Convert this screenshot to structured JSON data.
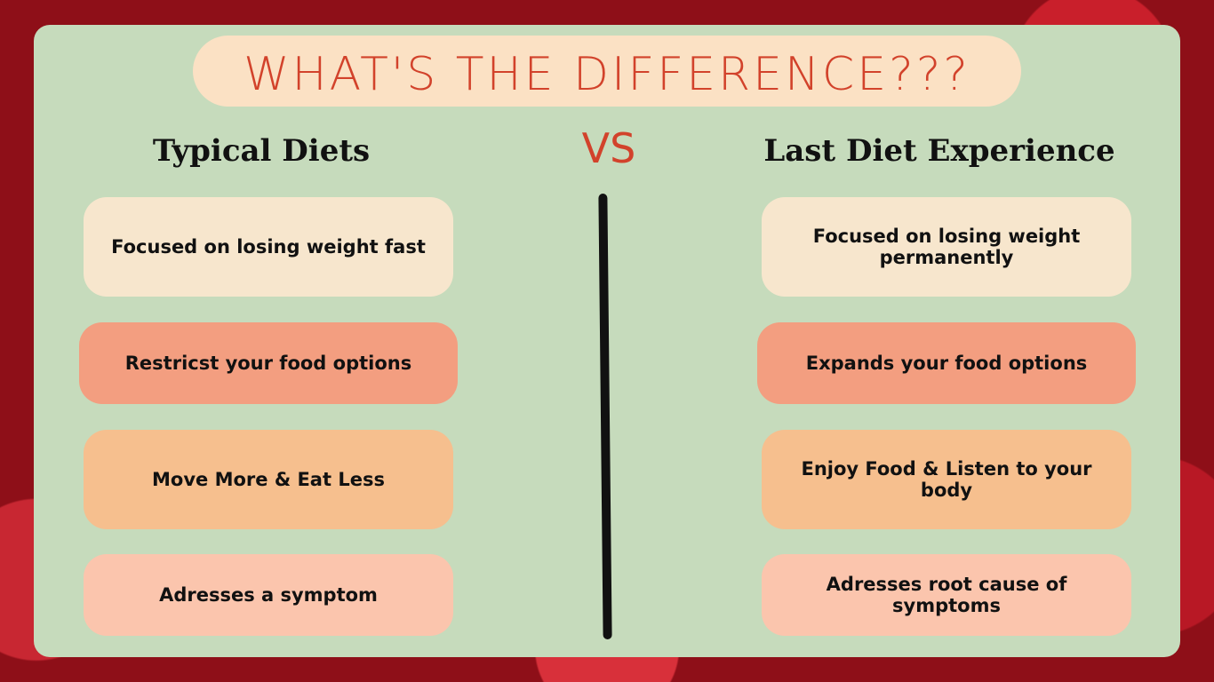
{
  "title": "WHAT'S THE DIFFERENCE???",
  "vs": "VS",
  "left": {
    "heading": "Typical Diets",
    "items": [
      "Focused on losing weight fast",
      "Restricst your food options",
      "Move More & Eat Less",
      "Adresses a symptom"
    ]
  },
  "right": {
    "heading": "Last Diet Experience",
    "items": [
      "Focused on losing weight permanently",
      "Expands your food options",
      "Enjoy Food & Listen to your body",
      "Adresses root cause of symptoms"
    ]
  }
}
